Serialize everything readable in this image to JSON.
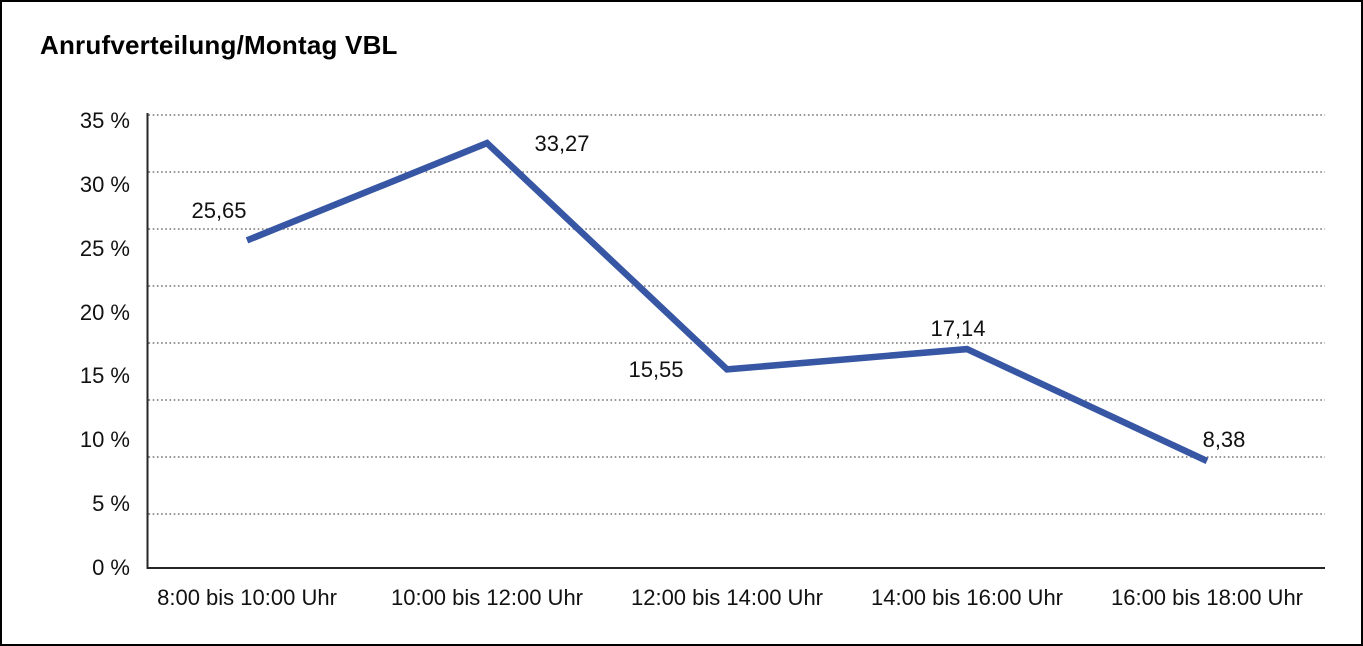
{
  "window": {
    "background": "#ffffff",
    "border_color": "#000000"
  },
  "chart_data": {
    "type": "line",
    "title": "Anrufverteilung/Montag VBL",
    "categories": [
      "8:00 bis 10:00 Uhr",
      "10:00 bis 12:00 Uhr",
      "12:00 bis 14:00 Uhr",
      "14:00 bis 16:00 Uhr",
      "16:00 bis 18:00 Uhr"
    ],
    "series": [
      {
        "values": [
          25.65,
          33.27,
          15.55,
          17.14,
          8.38
        ],
        "data_labels": [
          "25,65",
          "33,27",
          "15,55",
          "17,14",
          "8,38"
        ],
        "color": "#3756A4"
      }
    ],
    "xlabel": "",
    "ylabel": "",
    "ylim": [
      0,
      35
    ],
    "y_ticks": [
      {
        "value": 35,
        "label": "35 %"
      },
      {
        "value": 30,
        "label": "30 %"
      },
      {
        "value": 25,
        "label": "25 %"
      },
      {
        "value": 20,
        "label": "20 %"
      },
      {
        "value": 15,
        "label": "15 %"
      },
      {
        "value": 10,
        "label": "10 %"
      },
      {
        "value": 5,
        "label": "5 %"
      },
      {
        "value": 0,
        "label": "0 %"
      }
    ],
    "grid": "horizontal-dotted",
    "legend": "none",
    "data_labels_visible": true,
    "colors": {
      "line": "#3756A4",
      "axis": "#262626",
      "gridline": "#737373",
      "text": "#111111"
    }
  }
}
